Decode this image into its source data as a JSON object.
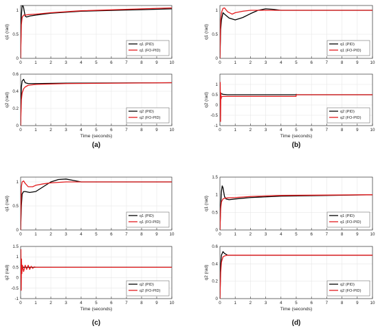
{
  "time_label": "Time (seconds)",
  "x_ticks": [
    "0",
    "1",
    "2",
    "3",
    "4",
    "5",
    "6",
    "7",
    "8",
    "9",
    "10"
  ],
  "units": "(rad)",
  "colors": {
    "pid": "#000000",
    "fopid": "#e31a1c",
    "axis": "#333333",
    "grid": "#e6e6e6"
  },
  "legend": {
    "q1_pid": "q1 (PID)",
    "q1_fopid": "q1 (FO-PID)",
    "q2_pid": "q2 (PID)",
    "q2_fopid": "q2 (FO-PID)"
  },
  "chart_data": [
    {
      "type": "line",
      "caption": "(a)",
      "panels": [
        {
          "ylabel": "q1 (rad)",
          "ylim": [
            0,
            1.1
          ],
          "yticks": [
            "0",
            "0.5",
            "1"
          ],
          "legend_position": "bottom-right",
          "series": [
            {
              "name": "q1 (PID)",
              "x": [
                0,
                0.05,
                0.1,
                0.15,
                0.2,
                0.3,
                0.4,
                0.6,
                1,
                2,
                4,
                10
              ],
              "y": [
                0,
                0.9,
                1.18,
                1.2,
                1.05,
                0.88,
                0.86,
                0.88,
                0.9,
                0.94,
                0.98,
                1.03
              ]
            },
            {
              "name": "q1 (FO-PID)",
              "x": [
                0,
                0.05,
                0.1,
                0.2,
                0.3,
                0.5,
                1,
                2,
                4,
                10
              ],
              "y": [
                0,
                0.7,
                0.85,
                0.9,
                0.9,
                0.91,
                0.92,
                0.95,
                0.99,
                1.05
              ]
            }
          ]
        },
        {
          "ylabel": "q2 (rad)",
          "ylim": [
            0,
            0.6
          ],
          "yticks": [
            "0",
            "0.2",
            "0.4",
            "0.6"
          ],
          "legend_position": "bottom-right",
          "series": [
            {
              "name": "q2 (PID)",
              "x": [
                0,
                0.05,
                0.1,
                0.2,
                0.3,
                0.5,
                1,
                3,
                10
              ],
              "y": [
                0,
                0.45,
                0.52,
                0.54,
                0.5,
                0.49,
                0.49,
                0.495,
                0.5
              ]
            },
            {
              "name": "q2 (FO-PID)",
              "x": [
                0,
                0.05,
                0.1,
                0.2,
                0.3,
                0.5,
                1,
                3,
                10
              ],
              "y": [
                0,
                0.3,
                0.38,
                0.43,
                0.45,
                0.47,
                0.48,
                0.49,
                0.5
              ]
            }
          ]
        }
      ]
    },
    {
      "type": "line",
      "caption": "(b)",
      "panels": [
        {
          "ylabel": "q1 (rad)",
          "ylim": [
            0,
            1.1
          ],
          "yticks": [
            "0",
            "0.5",
            "1"
          ],
          "legend_position": "bottom-right",
          "series": [
            {
              "name": "q1 (PID)",
              "x": [
                0,
                0.05,
                0.1,
                0.2,
                0.3,
                0.6,
                1,
                1.5,
                2,
                2.5,
                3,
                3.5,
                4,
                5,
                10
              ],
              "y": [
                0,
                0.6,
                0.8,
                0.95,
                0.92,
                0.84,
                0.8,
                0.85,
                0.93,
                1.0,
                1.03,
                1.02,
                1.0,
                1.0,
                1.0
              ]
            },
            {
              "name": "q1 (FO-PID)",
              "x": [
                0,
                0.05,
                0.1,
                0.2,
                0.3,
                0.5,
                0.8,
                1,
                1.5,
                2,
                3,
                4,
                10
              ],
              "y": [
                0,
                0.8,
                0.95,
                1.04,
                1.05,
                0.97,
                0.92,
                0.95,
                0.98,
                1.0,
                1.0,
                1.0,
                1.0
              ]
            }
          ]
        },
        {
          "ylabel": "q2 (rad)",
          "ylim": [
            -1,
            1.5
          ],
          "yticks": [
            "-1",
            "-0.5",
            "0",
            "0.5",
            "1"
          ],
          "legend_position": "bottom-right",
          "series": [
            {
              "name": "q2 (PID)",
              "x": [
                0,
                0.02,
                0.05,
                0.1,
                0.2,
                0.5,
                1,
                4.99,
                5,
                5.01,
                10
              ],
              "y": [
                0,
                0.3,
                0.55,
                0.55,
                0.52,
                0.5,
                0.5,
                0.5,
                0.52,
                0.5,
                0.5
              ]
            },
            {
              "name": "q2 (FO-PID)",
              "x": [
                0,
                0.02,
                0.04,
                0.06,
                0.08,
                0.1,
                0.2,
                0.5,
                1,
                4.99,
                5,
                5.01,
                10
              ],
              "y": [
                0,
                1.1,
                -0.8,
                0.6,
                0.3,
                0.4,
                0.42,
                0.42,
                0.42,
                0.42,
                0.5,
                0.5,
                0.5
              ]
            }
          ]
        }
      ]
    },
    {
      "type": "line",
      "caption": "(c)",
      "panels": [
        {
          "ylabel": "q1 (rad)",
          "ylim": [
            0,
            1.1
          ],
          "yticks": [
            "0",
            "0.5",
            "1"
          ],
          "legend_position": "bottom-right",
          "series": [
            {
              "name": "q1 (PID)",
              "x": [
                0,
                0.05,
                0.1,
                0.2,
                0.3,
                0.6,
                1,
                1.5,
                2,
                2.5,
                3,
                3.5,
                4,
                5,
                10
              ],
              "y": [
                0,
                0.5,
                0.75,
                0.8,
                0.8,
                0.78,
                0.8,
                0.9,
                1.0,
                1.05,
                1.06,
                1.03,
                1.0,
                1.0,
                1.0
              ]
            },
            {
              "name": "q1 (FO-PID)",
              "x": [
                0,
                0.05,
                0.1,
                0.2,
                0.3,
                0.5,
                0.8,
                1,
                1.5,
                2,
                3,
                4,
                10
              ],
              "y": [
                0,
                0.9,
                1.0,
                1.02,
                0.97,
                0.9,
                0.9,
                0.93,
                0.96,
                0.98,
                1.0,
                1.0,
                1.0
              ]
            }
          ]
        },
        {
          "ylabel": "q2 (rad)",
          "ylim": [
            -1,
            1.5
          ],
          "yticks": [
            "-1",
            "-0.5",
            "0",
            "0.5",
            "1",
            "1.5"
          ],
          "legend_position": "bottom-right",
          "series": [
            {
              "name": "q2 (PID)",
              "x": [
                0,
                0.02,
                0.05,
                0.1,
                0.2,
                0.5,
                1,
                10
              ],
              "y": [
                0,
                0.3,
                0.5,
                0.52,
                0.5,
                0.5,
                0.5,
                0.5
              ]
            },
            {
              "name": "q2 (FO-PID)",
              "x": [
                0,
                0.02,
                0.04,
                0.06,
                0.08,
                0.12,
                0.2,
                0.3,
                0.4,
                0.5,
                0.6,
                0.7,
                0.8,
                0.9,
                1,
                10
              ],
              "y": [
                0,
                1.35,
                -0.6,
                0.9,
                0.2,
                0.6,
                0.3,
                0.6,
                0.4,
                0.6,
                0.4,
                0.55,
                0.45,
                0.52,
                0.5,
                0.5
              ]
            }
          ]
        }
      ]
    },
    {
      "type": "line",
      "caption": "(d)",
      "panels": [
        {
          "ylabel": "q1 (rad)",
          "ylim": [
            0,
            1.5
          ],
          "yticks": [
            "0",
            "0.5",
            "1",
            "1.5"
          ],
          "legend_position": "bottom-right",
          "series": [
            {
              "name": "q1 (PID)",
              "x": [
                0,
                0.05,
                0.1,
                0.15,
                0.2,
                0.3,
                0.4,
                0.6,
                1,
                2,
                4,
                10
              ],
              "y": [
                0,
                0.7,
                1.1,
                1.25,
                1.2,
                0.95,
                0.88,
                0.86,
                0.88,
                0.92,
                0.96,
                1.0
              ]
            },
            {
              "name": "q1 (FO-PID)",
              "x": [
                0,
                0.05,
                0.1,
                0.2,
                0.3,
                0.5,
                1,
                2,
                4,
                10
              ],
              "y": [
                0,
                0.6,
                0.8,
                0.88,
                0.9,
                0.91,
                0.92,
                0.95,
                0.98,
                1.0
              ]
            }
          ]
        },
        {
          "ylabel": "q2 (rad)",
          "ylim": [
            0,
            0.6
          ],
          "yticks": [
            "0",
            "0.2",
            "0.4",
            "0.6"
          ],
          "legend_position": "bottom-right",
          "series": [
            {
              "name": "q2 (PID)",
              "x": [
                0,
                0.05,
                0.1,
                0.2,
                0.3,
                0.5,
                1,
                10
              ],
              "y": [
                0,
                0.4,
                0.5,
                0.54,
                0.52,
                0.5,
                0.5,
                0.5
              ]
            },
            {
              "name": "q2 (FO-PID)",
              "x": [
                0,
                0.05,
                0.1,
                0.2,
                0.3,
                0.5,
                1,
                10
              ],
              "y": [
                0,
                0.3,
                0.42,
                0.48,
                0.49,
                0.5,
                0.5,
                0.5
              ]
            }
          ]
        }
      ]
    }
  ]
}
